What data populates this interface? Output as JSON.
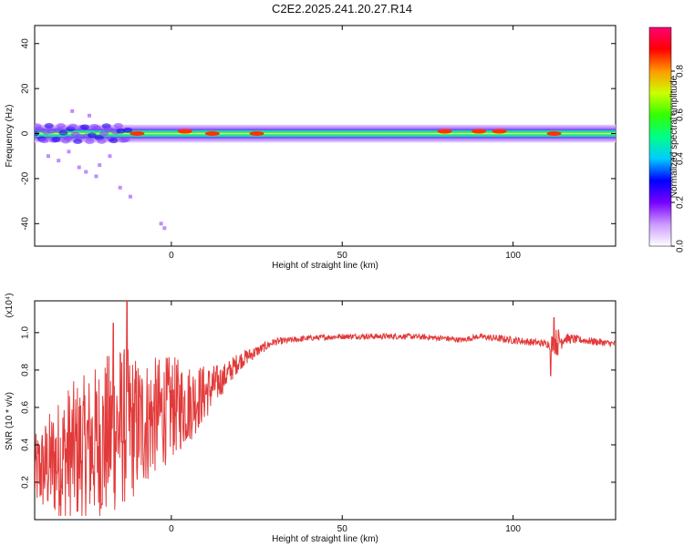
{
  "title": "C2E2.2025.241.20.27.R14",
  "chart_data": [
    {
      "type": "heatmap",
      "xlabel": "Height of straight line (km)",
      "ylabel": "Frequency (Hz)",
      "xlim": [
        -40,
        130
      ],
      "ylim": [
        -50,
        48
      ],
      "x_ticks": [
        0,
        50,
        100
      ],
      "y_ticks": [
        -40,
        -20,
        0,
        20,
        40
      ],
      "colorbar": {
        "label": "Normalized spectral amplitude",
        "range": [
          0.0,
          1.0
        ],
        "ticks": [
          0.0,
          0.2,
          0.4,
          0.6,
          0.8
        ],
        "colormap": [
          "#ffffff",
          "#cc99ff",
          "#7700ff",
          "#0000ff",
          "#00ccff",
          "#00ff88",
          "#33ff00",
          "#ccff00",
          "#ff9900",
          "#ff0000",
          "#ff0077"
        ]
      },
      "band": {
        "center_hz": 0,
        "core_halfwidth_hz": [
          -1.5,
          1.5
        ],
        "outer_halfwidth_hz": [
          -4,
          4
        ]
      },
      "scatter_points": [
        {
          "x": -36,
          "y": -10
        },
        {
          "x": -33,
          "y": -12
        },
        {
          "x": -30,
          "y": -8
        },
        {
          "x": -27,
          "y": -15
        },
        {
          "x": -25,
          "y": -17
        },
        {
          "x": -22,
          "y": -19
        },
        {
          "x": -21,
          "y": -14
        },
        {
          "x": -18,
          "y": -10
        },
        {
          "x": -15,
          "y": -24
        },
        {
          "x": -12,
          "y": -28
        },
        {
          "x": -3,
          "y": -40
        },
        {
          "x": -2,
          "y": -42
        },
        {
          "x": -29,
          "y": 10
        },
        {
          "x": -24,
          "y": 8
        }
      ],
      "hotspots": [
        {
          "x": -10,
          "y": 0
        },
        {
          "x": 4,
          "y": 1
        },
        {
          "x": 12,
          "y": 0
        },
        {
          "x": 25,
          "y": 0
        },
        {
          "x": 80,
          "y": 1
        },
        {
          "x": 90,
          "y": 1
        },
        {
          "x": 96,
          "y": 1
        },
        {
          "x": 112,
          "y": 0
        }
      ]
    },
    {
      "type": "line",
      "xlabel": "Height of straight line (km)",
      "ylabel": "SNR (10 * v/v)",
      "multiplier": "(x10⁴)",
      "xlim": [
        -40,
        130
      ],
      "ylim": [
        0.0,
        1.17
      ],
      "x_ticks": [
        0,
        50,
        100
      ],
      "y_ticks": [
        0.2,
        0.4,
        0.6,
        0.8,
        1.0
      ],
      "series": [
        {
          "color": "#e23a3a",
          "envelope": {
            "x": [
              -40,
              -35,
              -30,
              -25,
              -20,
              -15,
              -10,
              -5,
              0,
              5,
              10,
              15,
              20,
              25,
              30,
              40,
              50,
              60,
              70,
              80,
              85,
              90,
              95,
              100,
              105,
              110,
              113,
              115,
              120,
              125,
              130
            ],
            "mean": [
              0.25,
              0.3,
              0.35,
              0.38,
              0.42,
              0.5,
              0.5,
              0.55,
              0.6,
              0.62,
              0.68,
              0.75,
              0.85,
              0.9,
              0.95,
              0.97,
              0.98,
              0.98,
              0.98,
              0.97,
              0.96,
              0.98,
              0.97,
              0.96,
              0.95,
              0.94,
              0.95,
              0.97,
              0.96,
              0.95,
              0.94
            ],
            "amplitude": [
              0.2,
              0.3,
              0.38,
              0.4,
              0.45,
              0.45,
              0.38,
              0.32,
              0.28,
              0.22,
              0.15,
              0.08,
              0.05,
              0.03,
              0.02,
              0.015,
              0.015,
              0.015,
              0.015,
              0.015,
              0.015,
              0.015,
              0.02,
              0.02,
              0.02,
              0.02,
              0.08,
              0.03,
              0.02,
              0.02,
              0.015
            ]
          },
          "peaks": [
            {
              "x": -13,
              "y": 1.17
            },
            {
              "x": -17,
              "y": 1.05
            },
            {
              "x": 112,
              "y": 1.08
            },
            {
              "x": 111,
              "y": 0.77
            }
          ]
        }
      ]
    }
  ]
}
